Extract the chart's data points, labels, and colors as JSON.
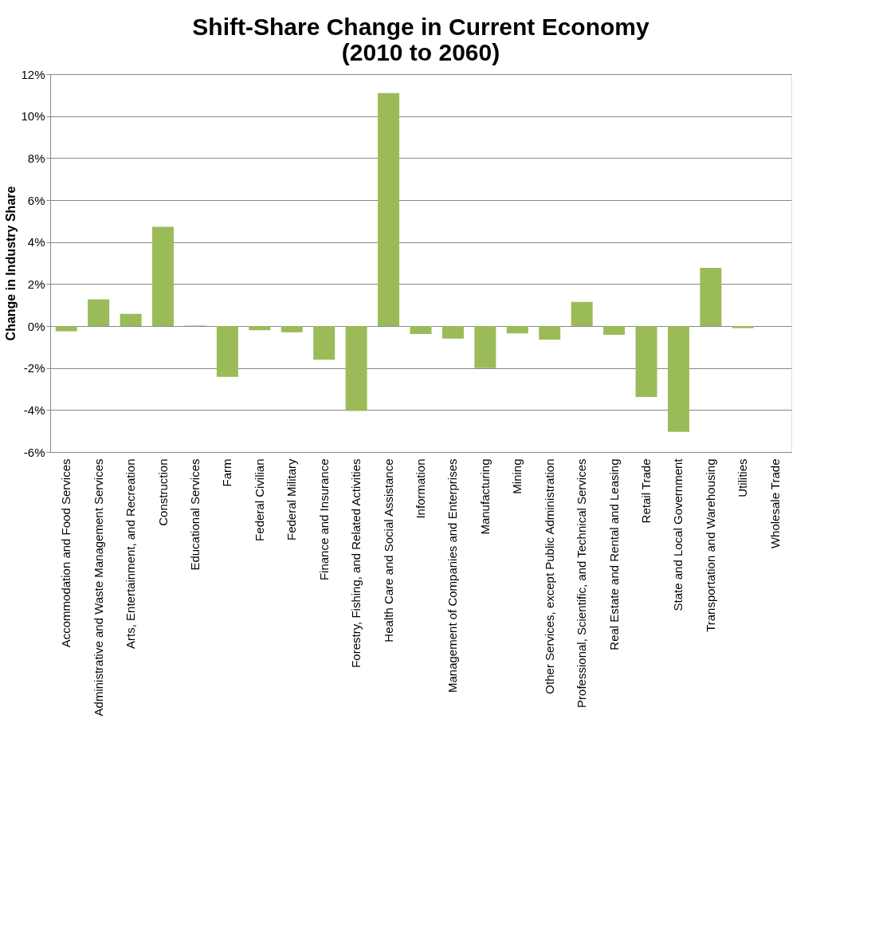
{
  "chart_data": {
    "type": "bar",
    "title": [
      "Shift-Share Change in Current Economy",
      "(2010 to 2060)"
    ],
    "ylabel": "Change in Industry Share",
    "categories": [
      "Accommodation and Food Services",
      "Administrative and Waste Management Services",
      "Arts, Entertainment, and Recreation",
      "Construction",
      "Educational Services",
      "Farm",
      "Federal Civilian",
      "Federal Military",
      "Finance and Insurance",
      "Forestry, Fishing, and Related Activities",
      "Health Care and Social Assistance",
      "Information",
      "Management of Companies and Enterprises",
      "Manufacturing",
      "Mining",
      "Other Services, except Public Administration",
      "Professional, Scientific, and Technical Services",
      "Real Estate and Rental and Leasing",
      "Retail Trade",
      "State and Local Government",
      "Transportation and Warehousing",
      "Utilities",
      "Wholesale Trade"
    ],
    "values": [
      -0.25,
      1.27,
      0.58,
      4.73,
      0.02,
      -2.42,
      -0.2,
      -0.3,
      -1.6,
      -4.04,
      11.1,
      -0.38,
      -0.6,
      -2.0,
      -0.35,
      -0.65,
      1.15,
      -0.42,
      -3.38,
      -5.04,
      2.77,
      -0.1,
      0.0
    ],
    "color": "#9bbb59",
    "ylim": [
      -6,
      12
    ],
    "yticks": [
      {
        "value": -6,
        "label": "-6%"
      },
      {
        "value": -4,
        "label": "-4%"
      },
      {
        "value": -2,
        "label": "-2%"
      },
      {
        "value": 0,
        "label": "0%"
      },
      {
        "value": 2,
        "label": "2%"
      },
      {
        "value": 4,
        "label": "4%"
      },
      {
        "value": 6,
        "label": "6%"
      },
      {
        "value": 8,
        "label": "8%"
      },
      {
        "value": 10,
        "label": "10%"
      },
      {
        "value": 12,
        "label": "12%"
      }
    ],
    "grid": "y"
  }
}
